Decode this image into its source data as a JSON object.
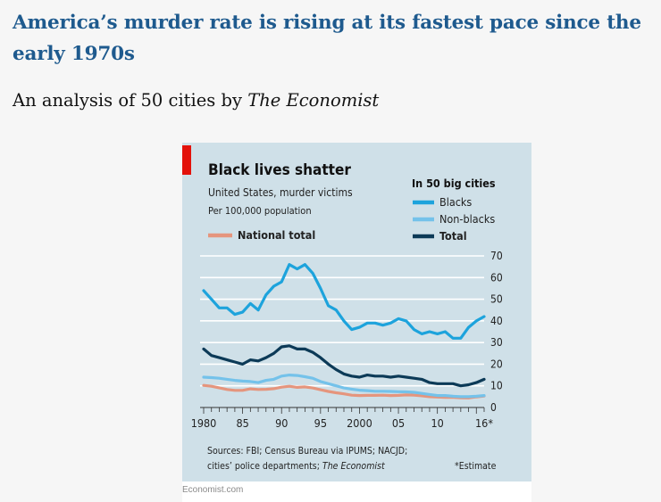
{
  "article": {
    "headline": "America’s murder rate is rising at its fastest pace since the early 1970s",
    "subhead_prefix": "An analysis of 50 cities by ",
    "subhead_italic": "The Economist"
  },
  "chart_data": {
    "type": "line",
    "title": "Black lives shatter",
    "subtitle": "United States, murder victims",
    "unit_label": "Per 100,000 population",
    "legend_group_title": "In 50 big cities",
    "xlim": [
      1980,
      2016
    ],
    "ylim": [
      0,
      70
    ],
    "yticks": [
      0,
      10,
      20,
      30,
      40,
      50,
      60,
      70
    ],
    "xtick_labels": [
      {
        "x": 1980,
        "label": "1980"
      },
      {
        "x": 1985,
        "label": "85"
      },
      {
        "x": 1990,
        "label": "90"
      },
      {
        "x": 1995,
        "label": "95"
      },
      {
        "x": 2000,
        "label": "2000"
      },
      {
        "x": 2005,
        "label": "05"
      },
      {
        "x": 2010,
        "label": "10"
      },
      {
        "x": 2016,
        "label": "16*"
      }
    ],
    "x": [
      1980,
      1981,
      1982,
      1983,
      1984,
      1985,
      1986,
      1987,
      1988,
      1989,
      1990,
      1991,
      1992,
      1993,
      1994,
      1995,
      1996,
      1997,
      1998,
      1999,
      2000,
      2001,
      2002,
      2003,
      2004,
      2005,
      2006,
      2007,
      2008,
      2009,
      2010,
      2011,
      2012,
      2013,
      2014,
      2015,
      2016
    ],
    "series": [
      {
        "name": "Blacks",
        "key": "blacks",
        "color": "#1da3dc",
        "values": [
          54,
          50,
          46,
          46,
          43,
          44,
          48,
          45,
          52,
          56,
          58,
          66,
          64,
          66,
          62,
          55,
          47,
          45,
          40,
          36,
          37,
          39,
          39,
          38,
          39,
          41,
          40,
          36,
          34,
          35,
          34,
          35,
          32,
          32,
          37,
          40,
          42
        ]
      },
      {
        "name": "Non-blacks",
        "key": "nonblacks",
        "color": "#74c2ea",
        "values": [
          14,
          13.8,
          13.5,
          13,
          12.5,
          12.2,
          12,
          11.5,
          12.5,
          13,
          14.5,
          15,
          14.8,
          14.2,
          13.5,
          12,
          11,
          10,
          9,
          8.5,
          8,
          7.8,
          7.5,
          7.5,
          7.4,
          7.3,
          7.2,
          7,
          6.5,
          6,
          5.5,
          5.5,
          5.2,
          5,
          5,
          5.2,
          5.5
        ]
      },
      {
        "name": "Total",
        "key": "total",
        "color": "#0c3a57",
        "values": [
          27,
          24,
          23,
          22,
          21,
          20,
          22,
          21.5,
          23,
          25,
          28,
          28.5,
          27,
          27,
          25.5,
          23,
          20,
          17.5,
          15.5,
          14.5,
          14,
          15,
          14.5,
          14.5,
          14,
          14.5,
          14,
          13.5,
          13,
          11.5,
          11,
          11,
          11,
          10,
          10.5,
          11.5,
          13
        ]
      },
      {
        "name": "National total",
        "key": "national",
        "color": "#e5957d",
        "values": [
          10.2,
          9.8,
          9.1,
          8.3,
          7.9,
          7.9,
          8.6,
          8.3,
          8.4,
          8.7,
          9.4,
          9.8,
          9.3,
          9.5,
          9.0,
          8.2,
          7.4,
          6.8,
          6.3,
          5.7,
          5.5,
          5.6,
          5.6,
          5.7,
          5.5,
          5.6,
          5.8,
          5.7,
          5.4,
          5.0,
          4.8,
          4.7,
          4.7,
          4.5,
          4.4,
          4.9,
          5.3
        ]
      }
    ],
    "sources_lines": [
      "Sources: FBI; Census Bureau via IPUMS; NACJD;",
      "cities’ police departments; "
    ],
    "sources_italic": "The Economist",
    "estimate_note": "*Estimate",
    "accent_color": "#e3120b",
    "background_color": "#cfe0e8"
  },
  "credit": "Economist.com"
}
